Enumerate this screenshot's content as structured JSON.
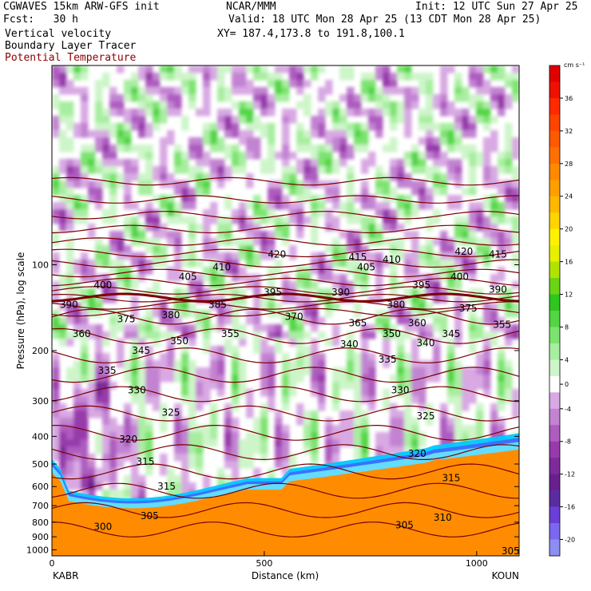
{
  "header": {
    "model": "CGWAVES 15km ARW-GFS init",
    "fcst": "Fcst:   30 h",
    "field1": "Vertical velocity",
    "field2": "Boundary Layer Tracer",
    "field3": "Potential Temperature",
    "org": "NCAR/MMM",
    "init": "Init: 12 UTC Sun 27 Apr 25",
    "valid": "Valid: 18 UTC Mon 28 Apr 25 (13 CDT Mon 28 Apr 25)",
    "xy": "XY= 187.4,173.8 to 191.8,100.1"
  },
  "colors": {
    "theta": "#7a0000",
    "frame": "#000000"
  },
  "chart_data": {
    "type": "heatmap",
    "ylabel": "Pressure (hPa), log scale",
    "xlabel": "Distance (km)",
    "x_ticks": [
      "0",
      "500",
      "1000"
    ],
    "x_tick_values": [
      0,
      500,
      1000
    ],
    "xlim": [
      0,
      1100
    ],
    "y_ticks": [
      "100",
      "200",
      "300",
      "400",
      "500",
      "600",
      "700",
      "800",
      "900",
      "1000"
    ],
    "y_tick_values": [
      100,
      200,
      300,
      400,
      500,
      600,
      700,
      800,
      900,
      1000
    ],
    "ylim": [
      1050,
      20
    ],
    "y_scale": "log",
    "left_endpoint": "KABR",
    "right_endpoint": "KOUN",
    "colorbar": {
      "unit": "cm s⁻¹",
      "tick_labels": [
        "36",
        "32",
        "28",
        "24",
        "20",
        "16",
        "12",
        "8",
        "4",
        "0",
        "-4",
        "-8",
        "-12",
        "-16",
        "-20"
      ],
      "levels": [
        -22,
        -20,
        -18,
        -16,
        -14,
        -12,
        -10,
        -8,
        -6,
        -4,
        -2,
        2,
        4,
        6,
        8,
        10,
        12,
        14,
        16,
        18,
        20,
        22,
        24,
        26,
        28,
        30,
        32,
        34,
        36,
        38,
        40
      ],
      "colors": [
        "#8d8df2",
        "#7b68ee",
        "#6a3fd6",
        "#5a2ca0",
        "#6a1f8e",
        "#7e2a9a",
        "#973aab",
        "#ad5cbf",
        "#c283d2",
        "#d8a9e3",
        "#ffffff",
        "#cdf5c9",
        "#a8eea0",
        "#7de36f",
        "#53d544",
        "#2fc61f",
        "#6bd415",
        "#b1e300",
        "#e8f000",
        "#fff200",
        "#ffd400",
        "#ffb800",
        "#ff9f00",
        "#ff8a00",
        "#ff7000",
        "#ff5a00",
        "#ff4400",
        "#ff2a00",
        "#f01000",
        "#e00000"
      ]
    },
    "theta_contour_labels": [
      {
        "text": "420",
        "x": 530,
        "p": 92
      },
      {
        "text": "415",
        "x": 720,
        "p": 94
      },
      {
        "text": "410",
        "x": 800,
        "p": 96
      },
      {
        "text": "420",
        "x": 970,
        "p": 90
      },
      {
        "text": "415",
        "x": 1050,
        "p": 92
      },
      {
        "text": "410",
        "x": 400,
        "p": 102
      },
      {
        "text": "405",
        "x": 320,
        "p": 110
      },
      {
        "text": "405",
        "x": 740,
        "p": 102
      },
      {
        "text": "400",
        "x": 120,
        "p": 118
      },
      {
        "text": "400",
        "x": 960,
        "p": 110
      },
      {
        "text": "395",
        "x": 520,
        "p": 125
      },
      {
        "text": "395",
        "x": 870,
        "p": 118
      },
      {
        "text": "390",
        "x": 40,
        "p": 138
      },
      {
        "text": "390",
        "x": 680,
        "p": 125
      },
      {
        "text": "390",
        "x": 1050,
        "p": 122
      },
      {
        "text": "385",
        "x": 390,
        "p": 138
      },
      {
        "text": "380",
        "x": 280,
        "p": 150
      },
      {
        "text": "380",
        "x": 810,
        "p": 138
      },
      {
        "text": "375",
        "x": 175,
        "p": 155
      },
      {
        "text": "375",
        "x": 980,
        "p": 142
      },
      {
        "text": "370",
        "x": 570,
        "p": 152
      },
      {
        "text": "365",
        "x": 720,
        "p": 160
      },
      {
        "text": "360",
        "x": 860,
        "p": 160
      },
      {
        "text": "360",
        "x": 70,
        "p": 175
      },
      {
        "text": "355",
        "x": 420,
        "p": 175
      },
      {
        "text": "355",
        "x": 1060,
        "p": 162
      },
      {
        "text": "350",
        "x": 300,
        "p": 185
      },
      {
        "text": "350",
        "x": 800,
        "p": 175
      },
      {
        "text": "345",
        "x": 210,
        "p": 200
      },
      {
        "text": "345",
        "x": 940,
        "p": 175
      },
      {
        "text": "340",
        "x": 700,
        "p": 190
      },
      {
        "text": "340",
        "x": 880,
        "p": 188
      },
      {
        "text": "335",
        "x": 130,
        "p": 235
      },
      {
        "text": "335",
        "x": 790,
        "p": 215
      },
      {
        "text": "330",
        "x": 200,
        "p": 275
      },
      {
        "text": "330",
        "x": 820,
        "p": 275
      },
      {
        "text": "325",
        "x": 280,
        "p": 330
      },
      {
        "text": "325",
        "x": 880,
        "p": 340
      },
      {
        "text": "320",
        "x": 180,
        "p": 410
      },
      {
        "text": "320",
        "x": 860,
        "p": 460
      },
      {
        "text": "315",
        "x": 220,
        "p": 490
      },
      {
        "text": "315",
        "x": 270,
        "p": 600
      },
      {
        "text": "315",
        "x": 940,
        "p": 560
      },
      {
        "text": "310",
        "x": 920,
        "p": 770
      },
      {
        "text": "305",
        "x": 230,
        "p": 760
      },
      {
        "text": "305",
        "x": 830,
        "p": 820
      },
      {
        "text": "300",
        "x": 120,
        "p": 830
      },
      {
        "text": "305",
        "x": 1080,
        "p": 1010
      }
    ]
  }
}
